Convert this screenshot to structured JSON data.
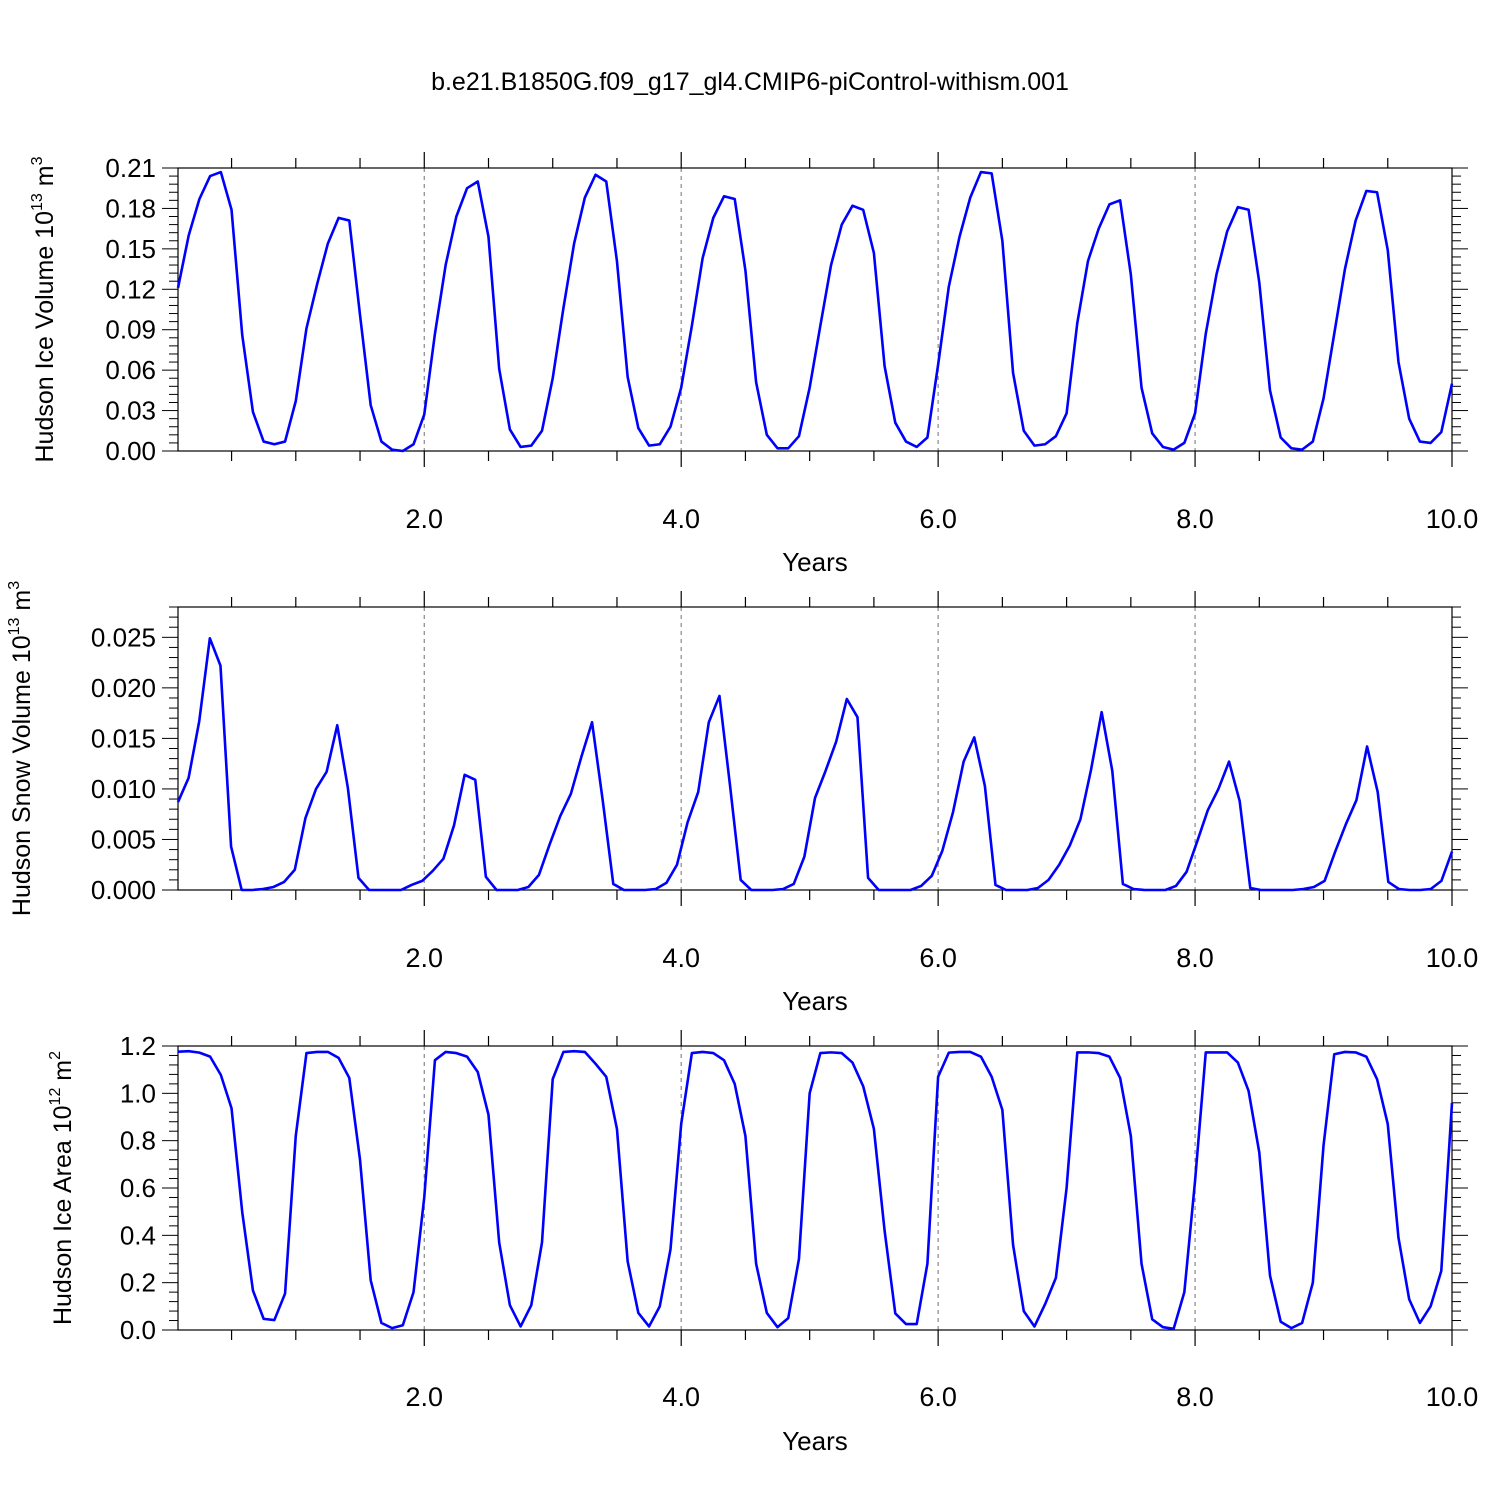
{
  "title": "b.e21.B1850G.f09_g17_gl4.CMIP6-piControl-withism.001",
  "chart_data": [
    {
      "type": "line",
      "ylabel_main": "Hudson Ice Volume 10",
      "ylabel_exp": "13",
      "ylabel_unit": " m",
      "ylabel_unit_exp": "3",
      "xlabel": "Years",
      "xlim": [
        0.083,
        10.0
      ],
      "ylim": [
        0.0,
        0.21
      ],
      "yticks": [
        0.0,
        0.03,
        0.06,
        0.09,
        0.12,
        0.15,
        0.18,
        0.21
      ],
      "ytick_labels": [
        "0.00",
        "0.03",
        "0.06",
        "0.09",
        "0.12",
        "0.15",
        "0.18",
        "0.21"
      ],
      "xticks": [
        2.0,
        4.0,
        6.0,
        8.0,
        10.0
      ],
      "xtick_labels": [
        "2.0",
        "4.0",
        "6.0",
        "8.0",
        "10.0"
      ],
      "grid_x_dashed": [
        2.0,
        4.0,
        6.0,
        8.0
      ],
      "line_color": "#0000ff",
      "values": [
        0.121,
        0.16,
        0.187,
        0.204,
        0.207,
        0.179,
        0.086,
        0.029,
        0.007,
        0.005,
        0.007,
        0.037,
        0.091,
        0.124,
        0.154,
        0.173,
        0.171,
        0.101,
        0.034,
        0.007,
        0.001,
        0.0,
        0.005,
        0.027,
        0.087,
        0.138,
        0.174,
        0.195,
        0.2,
        0.159,
        0.061,
        0.016,
        0.003,
        0.004,
        0.015,
        0.054,
        0.106,
        0.154,
        0.188,
        0.205,
        0.2,
        0.141,
        0.055,
        0.017,
        0.004,
        0.005,
        0.018,
        0.047,
        0.093,
        0.143,
        0.173,
        0.189,
        0.187,
        0.134,
        0.051,
        0.012,
        0.002,
        0.002,
        0.011,
        0.047,
        0.093,
        0.138,
        0.168,
        0.182,
        0.179,
        0.147,
        0.063,
        0.021,
        0.007,
        0.003,
        0.01,
        0.064,
        0.122,
        0.159,
        0.188,
        0.207,
        0.206,
        0.156,
        0.058,
        0.015,
        0.004,
        0.005,
        0.011,
        0.028,
        0.095,
        0.141,
        0.165,
        0.183,
        0.186,
        0.131,
        0.047,
        0.013,
        0.003,
        0.001,
        0.006,
        0.028,
        0.087,
        0.131,
        0.163,
        0.181,
        0.179,
        0.125,
        0.045,
        0.01,
        0.002,
        0.001,
        0.007,
        0.039,
        0.087,
        0.135,
        0.171,
        0.193,
        0.192,
        0.149,
        0.066,
        0.024,
        0.007,
        0.006,
        0.014,
        0.05
      ]
    },
    {
      "type": "line",
      "ylabel_main": "Hudson Snow Volume 10",
      "ylabel_exp": "13",
      "ylabel_unit": " m",
      "ylabel_unit_exp": "3",
      "xlabel": "Years",
      "xlim": [
        0.083,
        10.0
      ],
      "ylim": [
        0.0,
        0.028
      ],
      "yticks": [
        0.0,
        0.005,
        0.01,
        0.015,
        0.02,
        0.025
      ],
      "ytick_labels": [
        "0.000",
        "0.005",
        "0.010",
        "0.015",
        "0.020",
        "0.025"
      ],
      "xticks": [
        2.0,
        4.0,
        6.0,
        8.0,
        10.0
      ],
      "xtick_labels": [
        "2.0",
        "4.0",
        "6.0",
        "8.0",
        "10.0"
      ],
      "grid_x_dashed": [
        2.0,
        4.0,
        6.0,
        8.0
      ],
      "line_color": "#0000ff",
      "values": [
        0.0087,
        0.0111,
        0.0167,
        0.0249,
        0.0222,
        0.0043,
        0.0,
        0.0,
        0.0001,
        0.0003,
        0.0008,
        0.002,
        0.0071,
        0.01,
        0.0117,
        0.0163,
        0.0101,
        0.0012,
        0.0,
        0.0,
        0.0,
        0.0,
        0.0005,
        0.0009,
        0.0019,
        0.0031,
        0.0064,
        0.0114,
        0.0109,
        0.0013,
        0.0,
        0.0,
        0.0,
        0.0003,
        0.0015,
        0.0045,
        0.0073,
        0.0095,
        0.0132,
        0.0166,
        0.0089,
        0.0006,
        0.0,
        0.0,
        0.0,
        0.0001,
        0.0007,
        0.0025,
        0.0067,
        0.0097,
        0.0166,
        0.0192,
        0.0103,
        0.001,
        0.0,
        0.0,
        0.0,
        0.0001,
        0.0006,
        0.0033,
        0.0091,
        0.0118,
        0.0147,
        0.0189,
        0.0171,
        0.0012,
        0.0,
        0.0,
        0.0,
        0.0,
        0.0004,
        0.0014,
        0.0039,
        0.0077,
        0.0127,
        0.0151,
        0.0103,
        0.0005,
        0.0,
        0.0,
        0.0,
        0.0002,
        0.001,
        0.0025,
        0.0044,
        0.007,
        0.0119,
        0.0176,
        0.0118,
        0.0006,
        0.0001,
        0.0,
        0.0,
        0.0,
        0.0004,
        0.0018,
        0.0048,
        0.0079,
        0.01,
        0.0127,
        0.0088,
        0.0002,
        0.0,
        0.0,
        0.0,
        0.0,
        0.0001,
        0.0003,
        0.0009,
        0.0038,
        0.0065,
        0.0089,
        0.0142,
        0.0097,
        0.0008,
        0.0001,
        0.0,
        0.0,
        0.0001,
        0.0009,
        0.0038
      ]
    },
    {
      "type": "line",
      "ylabel_main": "Hudson Ice Area 10",
      "ylabel_exp": "12",
      "ylabel_unit": " m",
      "ylabel_unit_exp": "2",
      "xlabel": "Years",
      "xlim": [
        0.083,
        10.0
      ],
      "ylim": [
        0.0,
        1.2
      ],
      "yticks": [
        0.0,
        0.2,
        0.4,
        0.6,
        0.8,
        1.0,
        1.2
      ],
      "ytick_labels": [
        "0.0",
        "0.2",
        "0.4",
        "0.6",
        "0.8",
        "1.0",
        "1.2"
      ],
      "xticks": [
        2.0,
        4.0,
        6.0,
        8.0,
        10.0
      ],
      "xtick_labels": [
        "2.0",
        "4.0",
        "6.0",
        "8.0",
        "10.0"
      ],
      "grid_x_dashed": [
        2.0,
        4.0,
        6.0,
        8.0
      ],
      "line_color": "#0000ff",
      "values": [
        1.176,
        1.178,
        1.172,
        1.155,
        1.078,
        0.937,
        0.498,
        0.167,
        0.047,
        0.042,
        0.154,
        0.82,
        1.17,
        1.175,
        1.175,
        1.15,
        1.065,
        0.72,
        0.21,
        0.03,
        0.008,
        0.02,
        0.16,
        0.56,
        1.14,
        1.175,
        1.17,
        1.155,
        1.09,
        0.91,
        0.37,
        0.105,
        0.015,
        0.105,
        0.37,
        1.06,
        1.175,
        1.178,
        1.175,
        1.125,
        1.07,
        0.85,
        0.29,
        0.072,
        0.015,
        0.1,
        0.34,
        0.87,
        1.17,
        1.175,
        1.17,
        1.14,
        1.04,
        0.82,
        0.28,
        0.072,
        0.012,
        0.05,
        0.3,
        1.0,
        1.17,
        1.173,
        1.17,
        1.13,
        1.03,
        0.85,
        0.42,
        0.07,
        0.025,
        0.025,
        0.28,
        1.07,
        1.172,
        1.175,
        1.175,
        1.155,
        1.07,
        0.93,
        0.36,
        0.08,
        0.015,
        0.11,
        0.22,
        0.6,
        1.173,
        1.173,
        1.17,
        1.155,
        1.065,
        0.82,
        0.28,
        0.045,
        0.012,
        0.005,
        0.16,
        0.63,
        1.173,
        1.173,
        1.173,
        1.13,
        1.01,
        0.75,
        0.23,
        0.035,
        0.008,
        0.03,
        0.2,
        0.78,
        1.165,
        1.175,
        1.173,
        1.155,
        1.06,
        0.87,
        0.39,
        0.13,
        0.03,
        0.1,
        0.25,
        0.96
      ]
    }
  ]
}
